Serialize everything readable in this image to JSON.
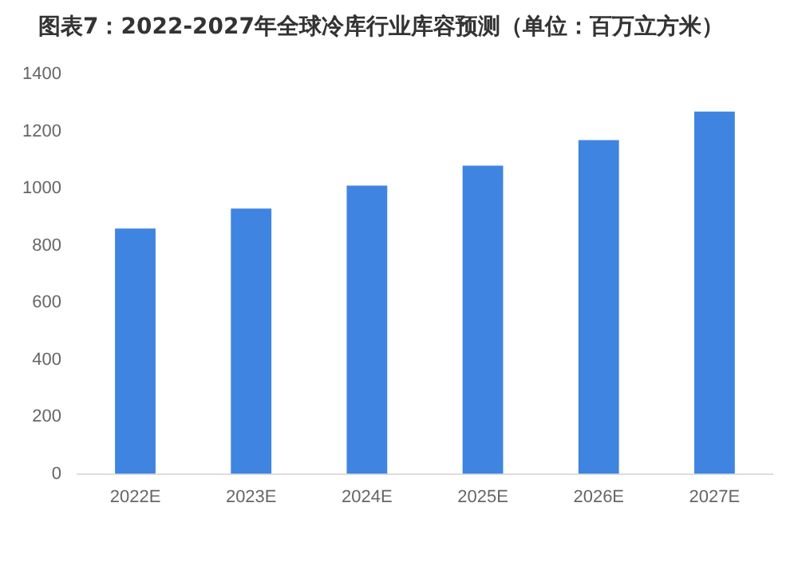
{
  "chart_data": {
    "type": "bar",
    "title": "图表7：2022-2027年全球冷库行业库容预测（单位：百万立方米）",
    "categories": [
      "2022E",
      "2023E",
      "2024E",
      "2025E",
      "2026E",
      "2027E"
    ],
    "values": [
      860,
      930,
      1010,
      1080,
      1170,
      1270
    ],
    "color": "#3f84e0",
    "ylim": [
      0,
      1400
    ],
    "yticks": [
      0,
      200,
      400,
      600,
      800,
      1000,
      1200,
      1400
    ],
    "grid": false,
    "legend": false
  }
}
